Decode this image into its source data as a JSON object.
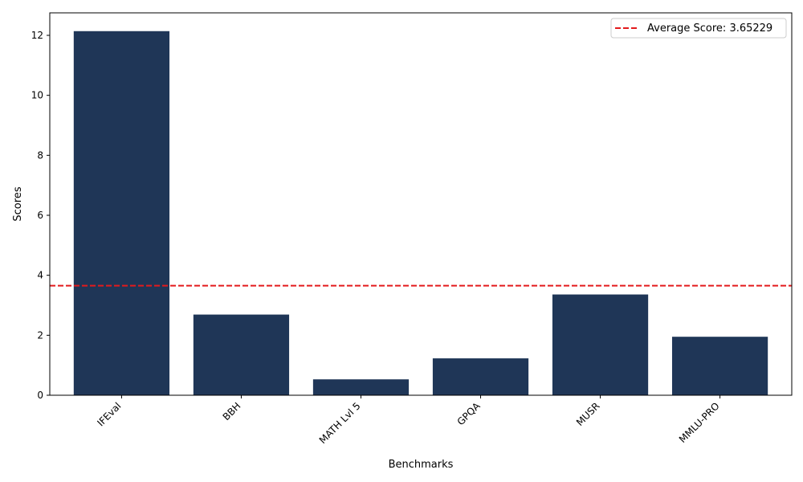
{
  "chart_data": {
    "type": "bar",
    "title": "",
    "xlabel": "Benchmarks",
    "ylabel": "Scores",
    "categories": [
      "IFEval",
      "BBH",
      "MATH Lvl 5",
      "GPQA",
      "MUSR",
      "MMLU-PRO"
    ],
    "values": [
      12.14,
      2.69,
      0.53,
      1.23,
      3.36,
      1.95
    ],
    "ylim": [
      0,
      12.75
    ],
    "yticks": [
      0,
      2,
      4,
      6,
      8,
      10,
      12
    ],
    "bar_color": "#1f3657",
    "grid": false,
    "legend_position": "top-right",
    "reference_line": {
      "label": "Average Score: 3.65229",
      "value": 3.65229,
      "color": "#e31a1c",
      "style": "dashed"
    }
  }
}
